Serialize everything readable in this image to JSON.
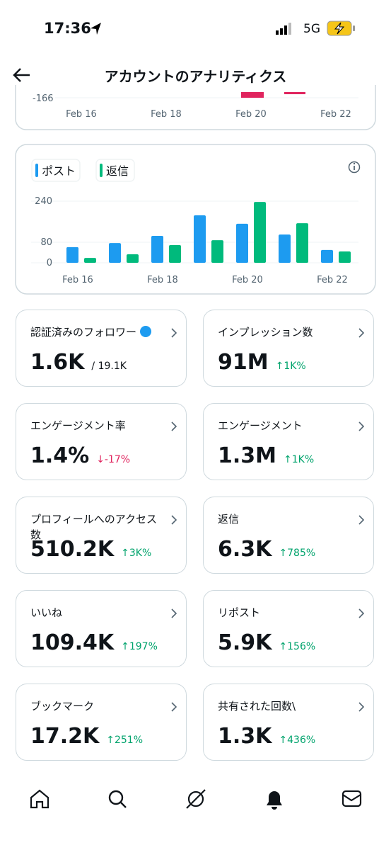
{
  "status": {
    "time": "17:36",
    "network": "5G"
  },
  "header": {
    "title": "アカウントのアナリティクス"
  },
  "top_chart": {
    "ytick_label": "-166",
    "x_labels": [
      "Feb 16",
      "Feb 18",
      "Feb 20",
      "Feb 22"
    ]
  },
  "chart_data": {
    "type": "bar",
    "categories": [
      "Feb 16",
      null,
      "Feb 18",
      null,
      "Feb 20",
      null,
      "Feb 22"
    ],
    "series": [
      {
        "name": "ポスト",
        "color": "#1d9bf0",
        "values": [
          61,
          77,
          105,
          185,
          152,
          110,
          50
        ]
      },
      {
        "name": "返信",
        "color": "#00ba7c",
        "values": [
          19,
          33,
          69,
          88,
          237,
          154,
          44
        ]
      }
    ],
    "ylim": [
      0,
      250
    ],
    "yticks": [
      0,
      80,
      240
    ],
    "grid": true
  },
  "cards": [
    {
      "title": "認証済みのフォロワー",
      "value": "1.6K",
      "total": "/ 19.1K"
    },
    {
      "title": "インプレッション数",
      "value": "91M",
      "change": "↑1K%",
      "color": "#00a36c"
    },
    {
      "title": "エンゲージメント率",
      "value": "1.4%",
      "change": "↓-17%",
      "color": "#e0245e"
    },
    {
      "title": "エンゲージメント",
      "value": "1.3M",
      "change": "↑1K%",
      "color": "#00a36c"
    },
    {
      "title": "プロフィールへのアクセス数",
      "value": "510.2K",
      "change": "↑3K%",
      "color": "#00a36c"
    },
    {
      "title": "返信",
      "value": "6.3K",
      "change": "↑785%",
      "color": "#00a36c"
    },
    {
      "title": "いいね",
      "value": "109.4K",
      "change": "↑197%",
      "color": "#00a36c"
    },
    {
      "title": "リポスト",
      "value": "5.9K",
      "change": "↑156%",
      "color": "#00a36c"
    },
    {
      "title": "ブックマーク",
      "value": "17.2K",
      "change": "↑251%",
      "color": "#00a36c"
    },
    {
      "title": "共有された回数\\",
      "value": "1.3K",
      "change": "↑436%",
      "color": "#00a36c"
    }
  ]
}
